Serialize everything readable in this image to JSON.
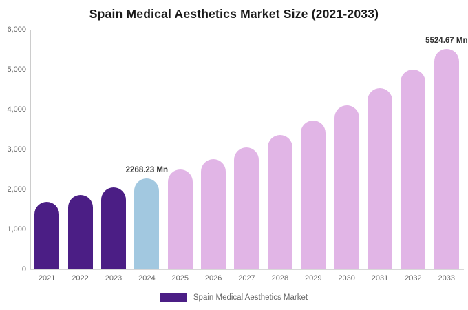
{
  "title": "Spain Medical Aesthetics Market Size (2021-2033)",
  "colors": {
    "bar_purple": "#4B1E85",
    "bar_blue": "#A2C8E0",
    "bar_pink": "#E1B5E6",
    "axis_line": "#cccccc",
    "axis_text": "#666666",
    "data_label_text": "#333333",
    "title_text": "#1a1a1a"
  },
  "legend": {
    "label": "Spain Medical Aesthetics Market",
    "swatch_color": "#4B1E85",
    "position": "bottom"
  },
  "chart_data": {
    "type": "bar",
    "title": "Spain Medical Aesthetics Market Size (2021-2033)",
    "series_name": "Spain Medical Aesthetics Market",
    "categories": [
      "2021",
      "2022",
      "2023",
      "2024",
      "2025",
      "2026",
      "2027",
      "2028",
      "2029",
      "2030",
      "2031",
      "2032",
      "2033"
    ],
    "values": [
      1686,
      1861,
      2055,
      2268.23,
      2504,
      2764,
      3052,
      3369,
      3719,
      4106,
      4533,
      5004,
      5524.67
    ],
    "unit": "Mn",
    "point_colors": [
      "#4B1E85",
      "#4B1E85",
      "#4B1E85",
      "#A2C8E0",
      "#E1B5E6",
      "#E1B5E6",
      "#E1B5E6",
      "#E1B5E6",
      "#E1B5E6",
      "#E1B5E6",
      "#E1B5E6",
      "#E1B5E6",
      "#E1B5E6"
    ],
    "data_labels": [
      {
        "index": 3,
        "text": "2268.23 Mn"
      },
      {
        "index": 12,
        "text": "5524.67 Mn"
      }
    ],
    "xlabel": "",
    "ylabel": "",
    "ylim": [
      0,
      6000
    ],
    "y_ticks": [
      {
        "value": 0,
        "label": "0"
      },
      {
        "value": 1000,
        "label": "1,000"
      },
      {
        "value": 2000,
        "label": "2,000"
      },
      {
        "value": 3000,
        "label": "3,000"
      },
      {
        "value": 4000,
        "label": "4,000"
      },
      {
        "value": 5000,
        "label": "5,000"
      },
      {
        "value": 6000,
        "label": "6,000"
      }
    ],
    "grid": false,
    "legend_position": "bottom"
  }
}
